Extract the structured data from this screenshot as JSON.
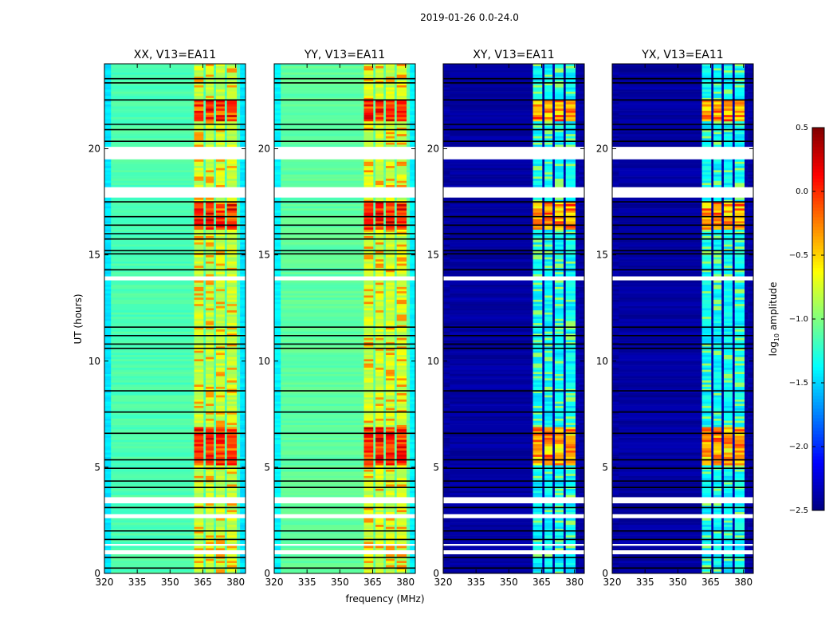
{
  "chart_data": {
    "type": "heatmap",
    "title": "2019-01-26 0.0-24.0",
    "xlabel": "frequency (MHz)",
    "ylabel": "UT (hours)",
    "xlim": [
      320,
      384.5
    ],
    "ylim": [
      0,
      24
    ],
    "xticks": [
      320,
      335,
      350,
      365,
      380
    ],
    "yticks": [
      0,
      5,
      10,
      15,
      20
    ],
    "colorbar": {
      "label_main": "log",
      "label_sub": "10",
      "label_rest": " amplitude",
      "range": [
        -2.5,
        0.5
      ],
      "ticks": [
        "0.5",
        "0.0",
        "−0.5",
        "−1.0",
        "−1.5",
        "−2.0",
        "−2.5"
      ],
      "tick_values": [
        0.5,
        0.0,
        -0.5,
        -1.0,
        -1.5,
        -2.0,
        -2.5
      ],
      "colormap": "jet"
    },
    "channel_bands_mhz": [
      [
        361,
        365.3
      ],
      [
        366.3,
        370
      ],
      [
        371,
        375
      ],
      [
        376,
        380.5
      ]
    ],
    "flagged_ut_ranges": [
      [
        19.5,
        20.1
      ],
      [
        17.7,
        18.2
      ],
      [
        13.85,
        14.0
      ],
      [
        3.3,
        3.6
      ],
      [
        2.65,
        2.8
      ],
      [
        1.3,
        1.45
      ],
      [
        0.95,
        1.1
      ]
    ],
    "black_ut_lines": [
      23.3,
      23.1,
      22.3,
      21.15,
      20.9,
      20.35,
      17.5,
      16.8,
      16.4,
      16.0,
      15.75,
      15.2,
      15.05,
      14.3,
      11.6,
      11.2,
      10.8,
      10.6,
      8.6,
      7.6,
      6.6,
      5.35,
      4.95,
      4.35,
      4.05,
      3.1,
      2.0,
      1.6,
      0.75,
      0.25
    ],
    "hot_ut_ranges": [
      [
        21.3,
        22.3
      ],
      [
        16.2,
        17.5
      ],
      [
        5.1,
        6.9
      ]
    ],
    "panels": [
      {
        "title": "XX, V13=EA11",
        "background_level": -1.15,
        "band_level": -0.75,
        "hot_boost": 0.95
      },
      {
        "title": "YY, V13=EA11",
        "background_level": -1.1,
        "band_level": -0.72,
        "hot_boost": 0.95
      },
      {
        "title": "XY, V13=EA11",
        "background_level": -2.4,
        "band_level": -1.35,
        "hot_boost": 1.3
      },
      {
        "title": "YX, V13=EA11",
        "background_level": -2.4,
        "band_level": -1.35,
        "hot_boost": 1.3
      }
    ]
  }
}
